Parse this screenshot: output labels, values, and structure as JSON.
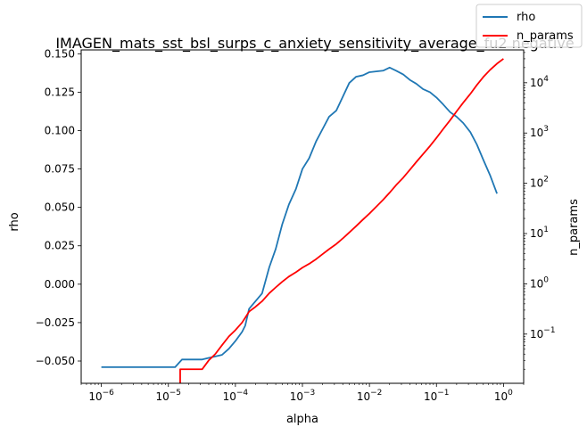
{
  "chart_data": {
    "type": "line",
    "title": "IMAGEN_mats_sst_bsl_surps_c_anxiety_sensitivity_average_fu2 negative",
    "xlabel": "alpha",
    "ylabel": "rho",
    "y2label": "n_params",
    "xscale": "log",
    "xlim": [
      5e-07,
      2.0
    ],
    "ylim": [
      -0.0645,
      0.1525
    ],
    "y2scale": "log",
    "y2lim": [
      0.0105,
      45000
    ],
    "legend_position": "top-right",
    "x_ticks": [
      {
        "value": 1e-06,
        "label": "10",
        "exp": "−6"
      },
      {
        "value": 1e-05,
        "label": "10",
        "exp": "−5"
      },
      {
        "value": 0.0001,
        "label": "10",
        "exp": "−4"
      },
      {
        "value": 0.001,
        "label": "10",
        "exp": "−3"
      },
      {
        "value": 0.01,
        "label": "10",
        "exp": "−2"
      },
      {
        "value": 0.1,
        "label": "10",
        "exp": "−1"
      },
      {
        "value": 1,
        "label": "10",
        "exp": "0"
      }
    ],
    "y_ticks": [
      {
        "value": -0.05,
        "label": "−0.050"
      },
      {
        "value": -0.025,
        "label": "−0.025"
      },
      {
        "value": 0.0,
        "label": "0.000"
      },
      {
        "value": 0.025,
        "label": "0.025"
      },
      {
        "value": 0.05,
        "label": "0.050"
      },
      {
        "value": 0.075,
        "label": "0.075"
      },
      {
        "value": 0.1,
        "label": "0.100"
      },
      {
        "value": 0.125,
        "label": "0.125"
      },
      {
        "value": 0.15,
        "label": "0.150"
      }
    ],
    "y2_ticks": [
      {
        "value": 0.1,
        "label": "10",
        "exp": "−1"
      },
      {
        "value": 1,
        "label": "10",
        "exp": "0"
      },
      {
        "value": 10,
        "label": "10",
        "exp": "1"
      },
      {
        "value": 100,
        "label": "10",
        "exp": "2"
      },
      {
        "value": 1000,
        "label": "10",
        "exp": "3"
      },
      {
        "value": 10000,
        "label": "10",
        "exp": "4"
      }
    ],
    "series": [
      {
        "name": "rho",
        "color": "#1f77b4",
        "axis": "left",
        "points": [
          [
            1e-06,
            -0.054
          ],
          [
            1e-05,
            -0.054
          ],
          [
            1.26e-05,
            -0.054
          ],
          [
            1.6e-05,
            -0.049
          ],
          [
            2.5e-05,
            -0.049
          ],
          [
            3.2e-05,
            -0.049
          ],
          [
            4e-05,
            -0.048
          ],
          [
            5e-05,
            -0.047
          ],
          [
            6.3e-05,
            -0.046
          ],
          [
            8e-05,
            -0.042
          ],
          [
            0.0001,
            -0.037
          ],
          [
            0.000126,
            -0.031
          ],
          [
            0.00014,
            -0.027
          ],
          [
            0.00016,
            -0.016
          ],
          [
            0.0002,
            -0.011
          ],
          [
            0.00025,
            -0.006
          ],
          [
            0.00032,
            0.011
          ],
          [
            0.0004,
            0.023
          ],
          [
            0.0005,
            0.039
          ],
          [
            0.00063,
            0.052
          ],
          [
            0.0008,
            0.062
          ],
          [
            0.001,
            0.075
          ],
          [
            0.00126,
            0.082
          ],
          [
            0.0016,
            0.093
          ],
          [
            0.002,
            0.101
          ],
          [
            0.0025,
            0.109
          ],
          [
            0.0032,
            0.113
          ],
          [
            0.004,
            0.122
          ],
          [
            0.005,
            0.131
          ],
          [
            0.0063,
            0.135
          ],
          [
            0.008,
            0.136
          ],
          [
            0.01,
            0.138
          ],
          [
            0.0126,
            0.1385
          ],
          [
            0.016,
            0.139
          ],
          [
            0.02,
            0.141
          ],
          [
            0.025,
            0.139
          ],
          [
            0.032,
            0.1365
          ],
          [
            0.04,
            0.133
          ],
          [
            0.05,
            0.1305
          ],
          [
            0.063,
            0.127
          ],
          [
            0.08,
            0.125
          ],
          [
            0.1,
            0.1215
          ],
          [
            0.126,
            0.117
          ],
          [
            0.16,
            0.112
          ],
          [
            0.2,
            0.109
          ],
          [
            0.25,
            0.105
          ],
          [
            0.32,
            0.099
          ],
          [
            0.4,
            0.091
          ],
          [
            0.5,
            0.081
          ],
          [
            0.63,
            0.071
          ],
          [
            0.8,
            0.059
          ]
        ]
      },
      {
        "name": "n_params",
        "color": "#ff0000",
        "axis": "right",
        "points": [
          [
            1.5e-05,
            0.001
          ],
          [
            1.5e-05,
            0.02
          ],
          [
            3.2e-05,
            0.02
          ],
          [
            4e-05,
            0.03
          ],
          [
            5e-05,
            0.04
          ],
          [
            6.3e-05,
            0.06
          ],
          [
            8e-05,
            0.09
          ],
          [
            0.0001,
            0.12
          ],
          [
            0.000126,
            0.17
          ],
          [
            0.00016,
            0.28
          ],
          [
            0.0002,
            0.35
          ],
          [
            0.00025,
            0.45
          ],
          [
            0.00032,
            0.65
          ],
          [
            0.0004,
            0.85
          ],
          [
            0.0005,
            1.1
          ],
          [
            0.00063,
            1.4
          ],
          [
            0.0008,
            1.7
          ],
          [
            0.001,
            2.1
          ],
          [
            0.00126,
            2.5
          ],
          [
            0.0016,
            3.1
          ],
          [
            0.002,
            3.9
          ],
          [
            0.0025,
            4.9
          ],
          [
            0.0032,
            6.2
          ],
          [
            0.004,
            8.0
          ],
          [
            0.005,
            10.5
          ],
          [
            0.0063,
            14
          ],
          [
            0.008,
            19
          ],
          [
            0.01,
            25
          ],
          [
            0.0126,
            34
          ],
          [
            0.016,
            47
          ],
          [
            0.02,
            65
          ],
          [
            0.025,
            92
          ],
          [
            0.032,
            130
          ],
          [
            0.04,
            185
          ],
          [
            0.05,
            265
          ],
          [
            0.063,
            380
          ],
          [
            0.08,
            550
          ],
          [
            0.1,
            800
          ],
          [
            0.126,
            1200
          ],
          [
            0.16,
            1800
          ],
          [
            0.2,
            2700
          ],
          [
            0.25,
            4000
          ],
          [
            0.32,
            6000
          ],
          [
            0.4,
            9000
          ],
          [
            0.5,
            13000
          ],
          [
            0.63,
            18000
          ],
          [
            0.8,
            24000
          ],
          [
            1,
            30000
          ]
        ]
      }
    ]
  }
}
